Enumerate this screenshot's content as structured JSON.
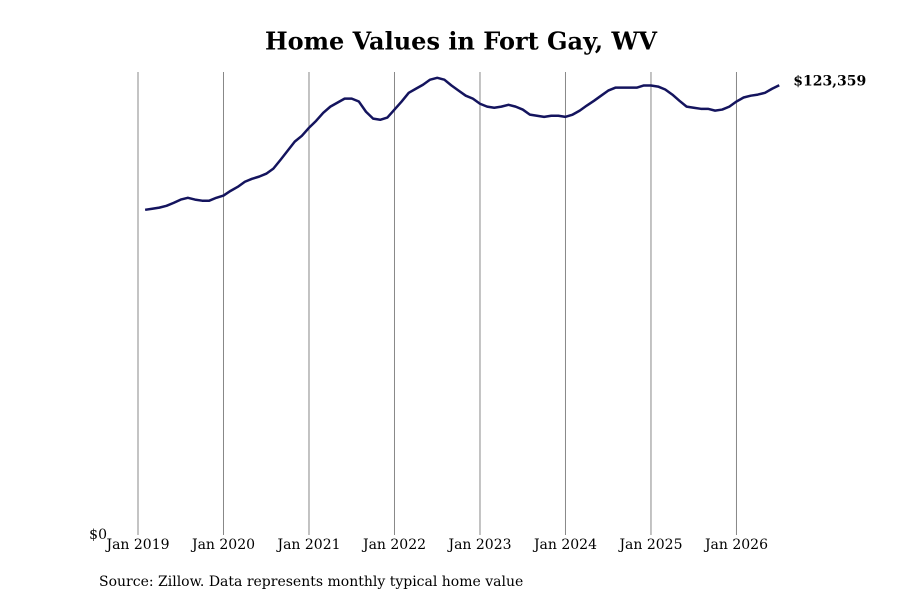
{
  "chart_data": {
    "type": "line",
    "title": "Home Values in Fort Gay, WV",
    "source": "Source: Zillow. Data represents monthly typical home value",
    "x": [
      "2019-02",
      "2019-03",
      "2019-04",
      "2019-05",
      "2019-06",
      "2019-07",
      "2019-08",
      "2019-09",
      "2019-10",
      "2019-11",
      "2019-12",
      "2020-01",
      "2020-02",
      "2020-03",
      "2020-04",
      "2020-05",
      "2020-06",
      "2020-07",
      "2020-08",
      "2020-09",
      "2020-10",
      "2020-11",
      "2020-12",
      "2021-01",
      "2021-02",
      "2021-03",
      "2021-04",
      "2021-05",
      "2021-06",
      "2021-07",
      "2021-08",
      "2021-09",
      "2021-10",
      "2021-11",
      "2021-12",
      "2022-01",
      "2022-02",
      "2022-03",
      "2022-04",
      "2022-05",
      "2022-06",
      "2022-07",
      "2022-08",
      "2022-09",
      "2022-10",
      "2022-11",
      "2022-12",
      "2023-01",
      "2023-02",
      "2023-03",
      "2023-04",
      "2023-05",
      "2023-06",
      "2023-07",
      "2023-08",
      "2023-09",
      "2023-10",
      "2023-11",
      "2023-12",
      "2024-01",
      "2024-02",
      "2024-03",
      "2024-04",
      "2024-05",
      "2024-06",
      "2024-07",
      "2024-08",
      "2024-09",
      "2024-10",
      "2024-11",
      "2024-12",
      "2025-01",
      "2025-02",
      "2025-03",
      "2025-04",
      "2025-05",
      "2025-06",
      "2025-07",
      "2025-08",
      "2025-09",
      "2025-10",
      "2025-11",
      "2025-12",
      "2026-01",
      "2026-02",
      "2026-03",
      "2026-04",
      "2026-05",
      "2026-06",
      "2026-07"
    ],
    "series": [
      {
        "name": "Typical home value",
        "color": "#14145e",
        "values": [
          89200,
          89500,
          89800,
          90300,
          91100,
          92000,
          92500,
          92000,
          91700,
          91700,
          92500,
          93100,
          94400,
          95500,
          96900,
          97700,
          98300,
          99100,
          100500,
          102900,
          105400,
          107900,
          109500,
          111700,
          113600,
          115800,
          117500,
          118600,
          119700,
          119700,
          118900,
          116100,
          114200,
          113900,
          114500,
          116700,
          118900,
          121300,
          122400,
          123500,
          124900,
          125400,
          124900,
          123300,
          121900,
          120500,
          119700,
          118300,
          117500,
          117200,
          117500,
          118000,
          117500,
          116700,
          115300,
          115000,
          114700,
          115000,
          115000,
          114700,
          115300,
          116400,
          117800,
          119100,
          120500,
          121900,
          122700,
          122700,
          122700,
          122700,
          123300,
          123300,
          123000,
          122200,
          120800,
          119100,
          117500,
          117200,
          116900,
          116900,
          116400,
          116700,
          117500,
          118900,
          120000,
          120500,
          120800,
          121300,
          122400,
          123359
        ],
        "value_labels": [
          null,
          null,
          null,
          null,
          null,
          null,
          null,
          null,
          null,
          null,
          null,
          null,
          null,
          null,
          null,
          null,
          null,
          null,
          null,
          null,
          null,
          null,
          null,
          null,
          null,
          null,
          null,
          null,
          null,
          null,
          null,
          null,
          null,
          null,
          null,
          null,
          null,
          null,
          null,
          null,
          null,
          null,
          null,
          null,
          null,
          null,
          null,
          null,
          null,
          null,
          null,
          null,
          null,
          null,
          null,
          null,
          null,
          null,
          null,
          null,
          null,
          null,
          null,
          null,
          null,
          null,
          null,
          null,
          null,
          null,
          null,
          null,
          null,
          null,
          null,
          null,
          null,
          null,
          null,
          null,
          null,
          null,
          null,
          null,
          null,
          null,
          null,
          null,
          null,
          "$123,359"
        ]
      }
    ],
    "xlim": [
      "2018-09",
      "2026-10"
    ],
    "xticks": [
      {
        "value": "2019-01",
        "label": "Jan 2019"
      },
      {
        "value": "2020-01",
        "label": "Jan 2020"
      },
      {
        "value": "2021-01",
        "label": "Jan 2021"
      },
      {
        "value": "2022-01",
        "label": "Jan 2022"
      },
      {
        "value": "2023-01",
        "label": "Jan 2023"
      },
      {
        "value": "2024-01",
        "label": "Jan 2024"
      },
      {
        "value": "2025-01",
        "label": "Jan 2025"
      },
      {
        "value": "2026-01",
        "label": "Jan 2026"
      }
    ],
    "ylim": [
      0,
      127000
    ],
    "yticks": [
      {
        "value": 0,
        "label": "$0"
      }
    ],
    "grid": "x"
  }
}
